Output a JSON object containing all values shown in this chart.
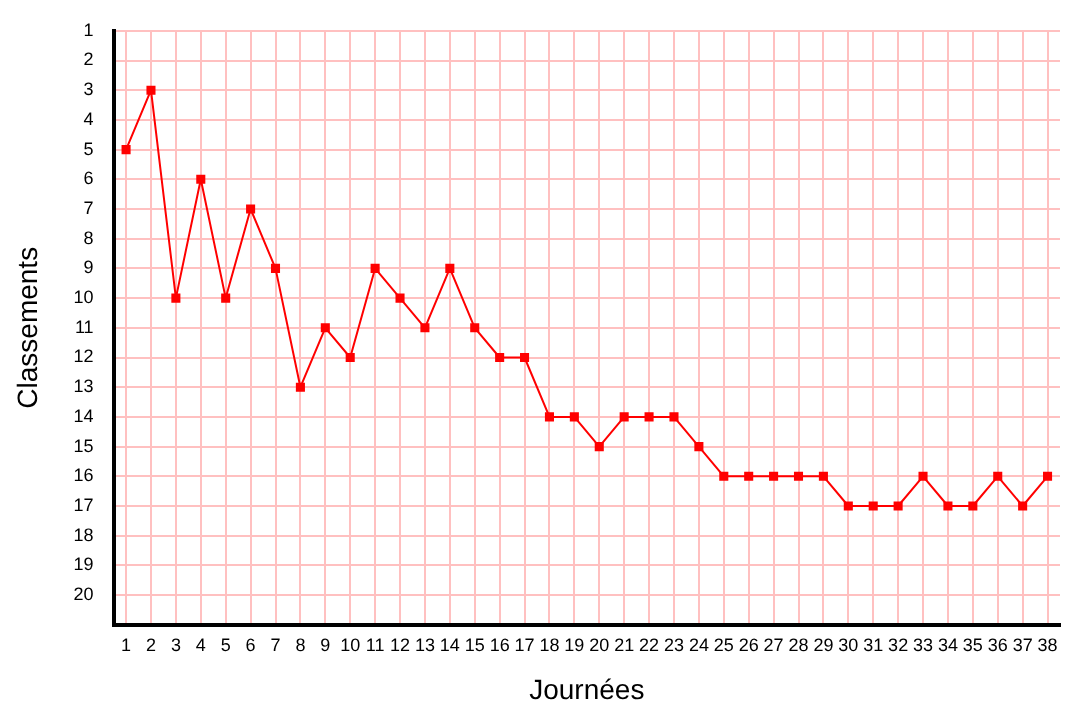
{
  "chart_data": {
    "type": "line",
    "xlabel": "Journées",
    "ylabel": "Classements",
    "x": [
      1,
      2,
      3,
      4,
      5,
      6,
      7,
      8,
      9,
      10,
      11,
      12,
      13,
      14,
      15,
      16,
      17,
      18,
      19,
      20,
      21,
      22,
      23,
      24,
      25,
      26,
      27,
      28,
      29,
      30,
      31,
      32,
      33,
      34,
      35,
      36,
      37,
      38
    ],
    "series": [
      {
        "color": "#ff0000",
        "values": [
          5,
          3,
          10,
          6,
          10,
          7,
          9,
          13,
          11,
          12,
          9,
          10,
          11,
          9,
          11,
          12,
          12,
          14,
          14,
          15,
          14,
          14,
          14,
          15,
          16,
          16,
          16,
          16,
          16,
          17,
          17,
          17,
          16,
          17,
          17,
          16,
          17,
          16
        ]
      }
    ],
    "xlim": [
      0.5,
      38.5
    ],
    "xticks": [
      1,
      2,
      3,
      4,
      5,
      6,
      7,
      8,
      9,
      10,
      11,
      12,
      13,
      14,
      15,
      16,
      17,
      18,
      19,
      20,
      21,
      22,
      23,
      24,
      25,
      26,
      27,
      28,
      29,
      30,
      31,
      32,
      33,
      34,
      35,
      36,
      37,
      38
    ],
    "ylim": [
      21,
      1
    ],
    "yticks": [
      1,
      2,
      3,
      4,
      5,
      6,
      7,
      8,
      9,
      10,
      11,
      12,
      13,
      14,
      15,
      16,
      17,
      18,
      19,
      20
    ],
    "grid": true,
    "legend": false,
    "marker": "square",
    "line_style": "solid"
  }
}
